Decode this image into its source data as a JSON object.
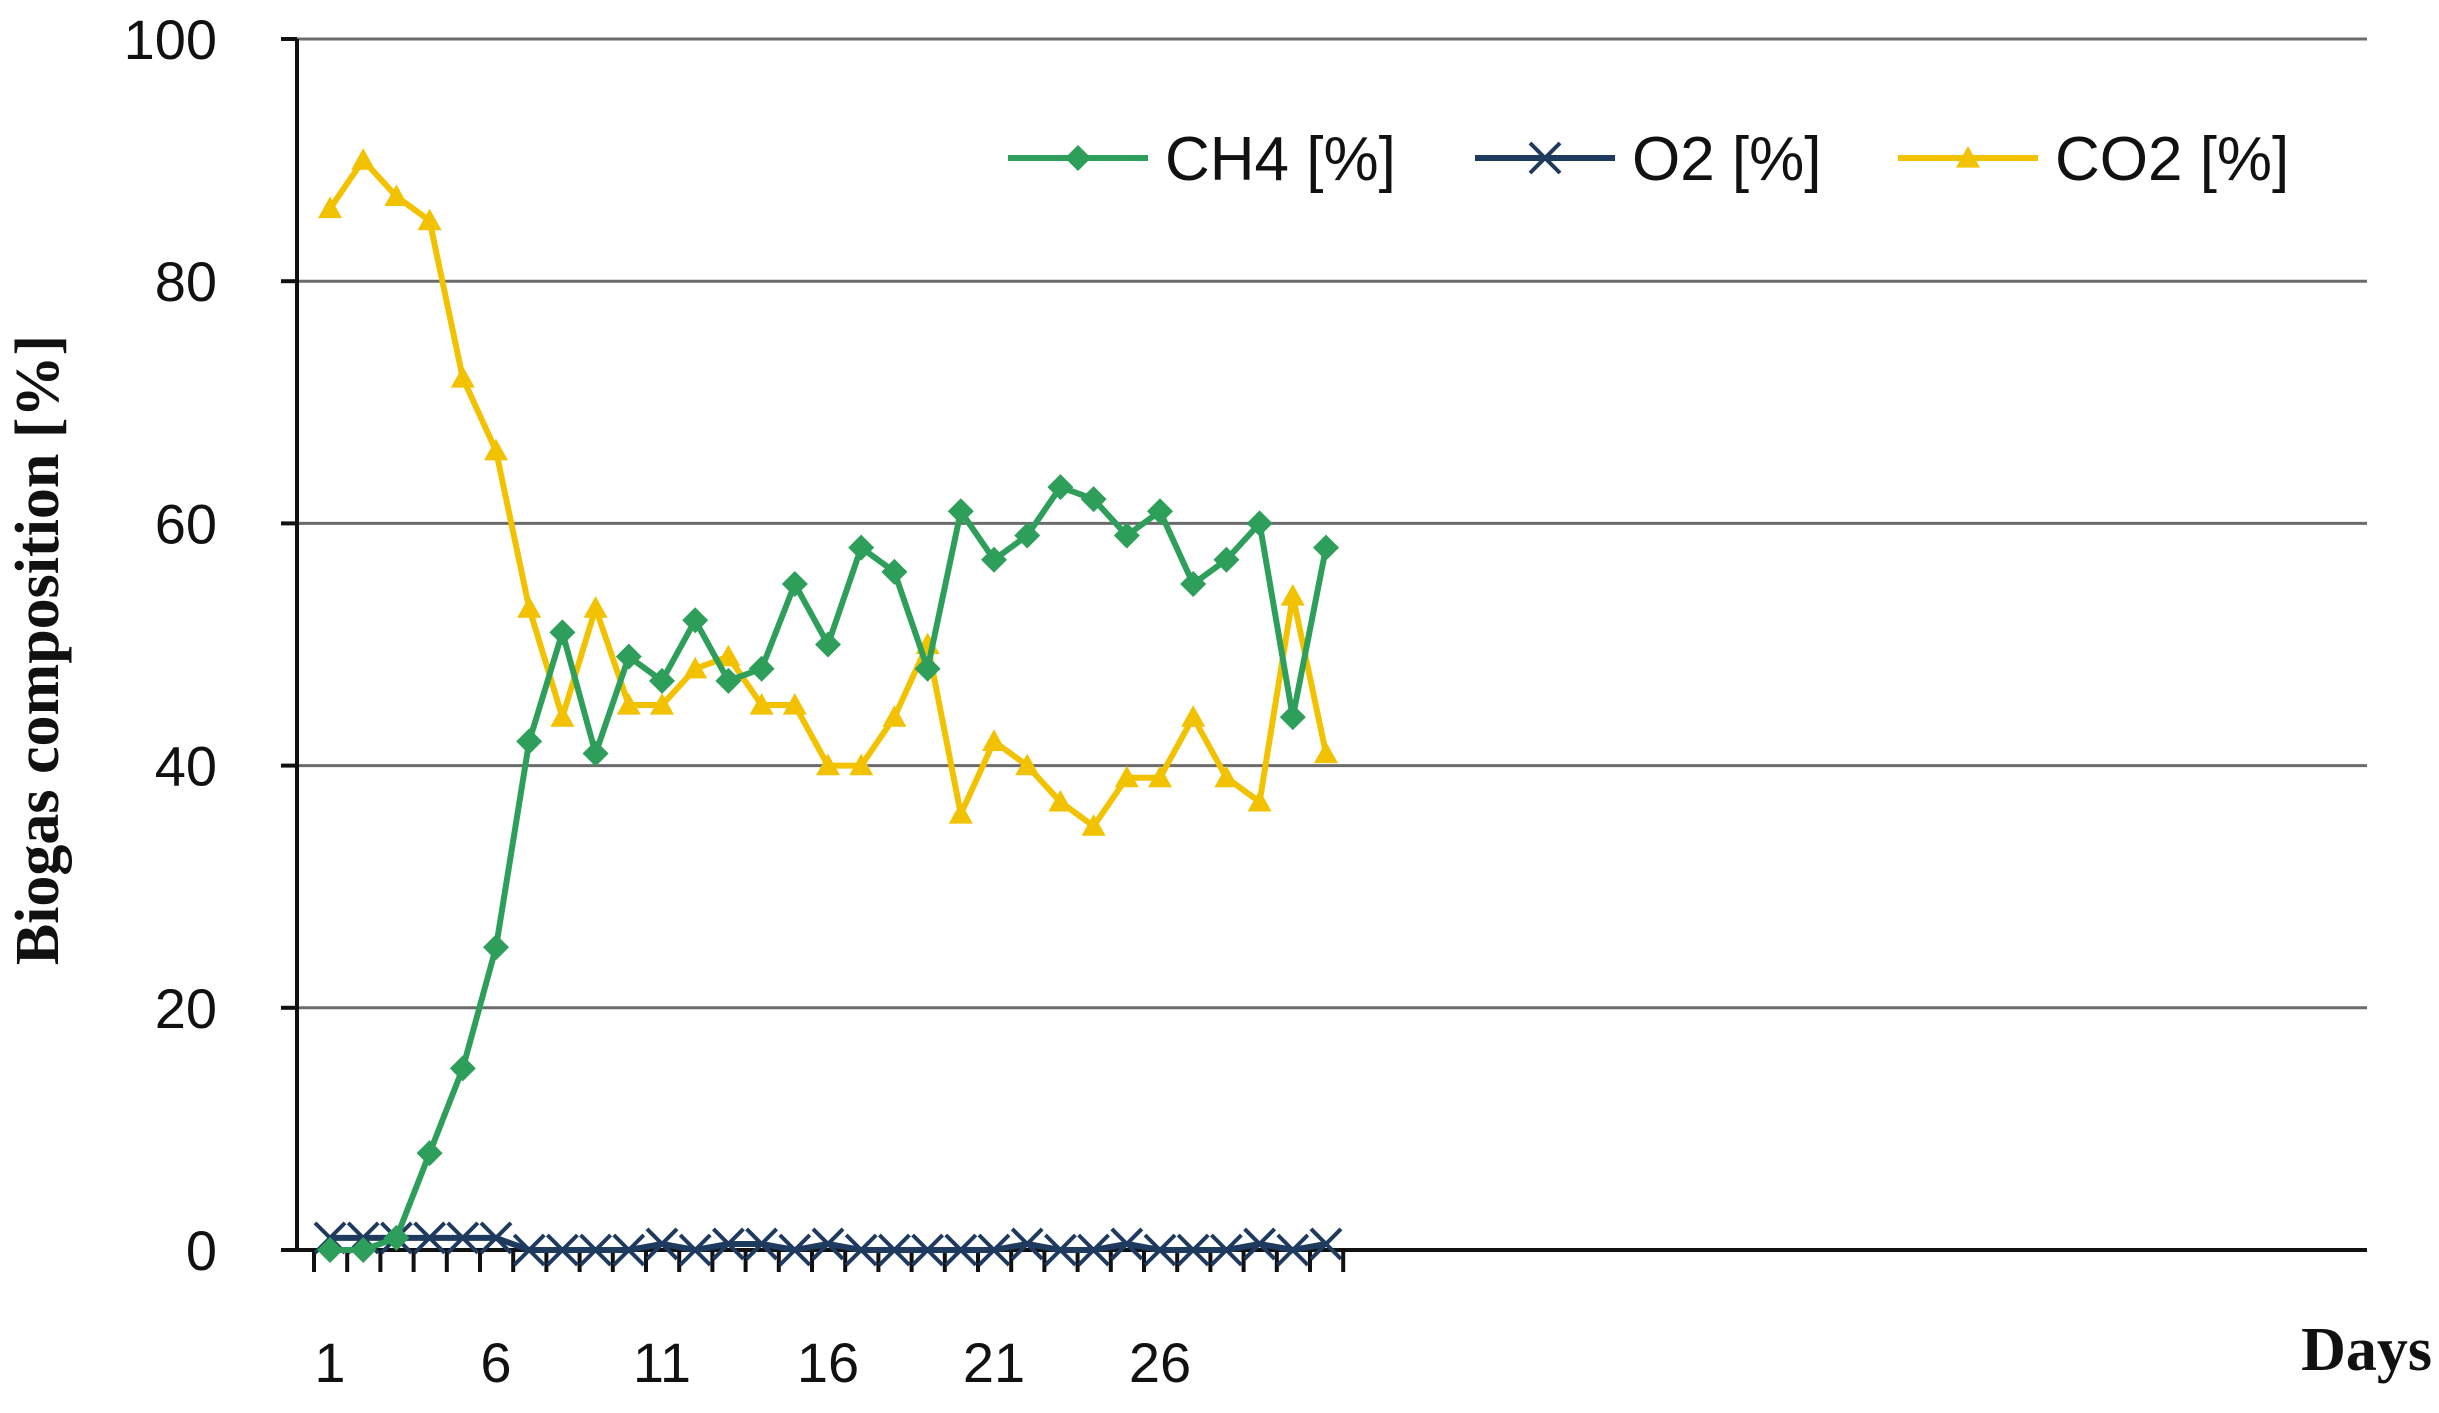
{
  "chart_data": {
    "type": "line",
    "ylabel": "Biogas composition  [%]",
    "xlabel": "Days",
    "ylim": [
      0,
      100
    ],
    "xlim": [
      1,
      31
    ],
    "yticks": [
      0,
      20,
      40,
      60,
      80,
      100
    ],
    "xticks": [
      1,
      6,
      11,
      16,
      21,
      26
    ],
    "grid": "horizontal",
    "legend": "top-right",
    "x": [
      1,
      2,
      3,
      4,
      5,
      6,
      7,
      8,
      9,
      10,
      11,
      12,
      13,
      14,
      15,
      16,
      17,
      18,
      19,
      20,
      21,
      22,
      23,
      24,
      25,
      26,
      27,
      28,
      29,
      30,
      31
    ],
    "series": [
      {
        "name": "CH4  [%]",
        "color": "#2e9e5b",
        "marker": "diamond",
        "values": [
          0,
          0,
          1,
          8,
          15,
          25,
          42,
          51,
          41,
          49,
          47,
          52,
          47,
          48,
          55,
          50,
          58,
          56,
          48,
          61,
          57,
          59,
          63,
          62,
          59,
          61,
          55,
          57,
          60,
          44,
          58
        ]
      },
      {
        "name": "O2 [%]",
        "color": "#1f3a5f",
        "marker": "x",
        "values": [
          1,
          1,
          1,
          1,
          1,
          1,
          0,
          0,
          0,
          0,
          0.5,
          0,
          0.5,
          0.5,
          0,
          0.5,
          0,
          0,
          0,
          0,
          0,
          0.5,
          0,
          0,
          0.5,
          0,
          0,
          0,
          0.5,
          0,
          0.5
        ]
      },
      {
        "name": "CO2 [%]",
        "color": "#f2c200",
        "marker": "triangle",
        "values": [
          86,
          90,
          87,
          85,
          72,
          66,
          53,
          44,
          53,
          45,
          45,
          48,
          49,
          45,
          45,
          40,
          40,
          44,
          50,
          36,
          42,
          40,
          37,
          35,
          39,
          39,
          44,
          39,
          37,
          54,
          41
        ]
      }
    ]
  }
}
